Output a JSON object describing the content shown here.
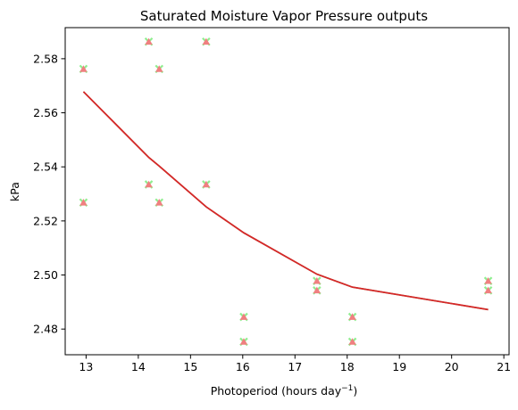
{
  "chart_data": {
    "type": "scatter",
    "title": "Saturated Moisture Vapor Pressure outputs",
    "xlabel_text": "Photoperiod (hours day",
    "xlabel_superscript": "−1",
    "xlabel_close": ")",
    "ylabel": "kPa",
    "xlim": [
      12.6,
      21.1
    ],
    "ylim": [
      2.4705,
      2.5915
    ],
    "xticks": [
      13,
      14,
      15,
      16,
      17,
      18,
      19,
      20,
      21
    ],
    "yticks": [
      2.48,
      2.5,
      2.52,
      2.54,
      2.56,
      2.58
    ],
    "ytick_decimals": 2,
    "grid": false,
    "legend": "none",
    "colors": {
      "marker_x": "#90ee90",
      "marker_triangle": "#f08080",
      "line": "#d62728",
      "line_underlay": "#2ca02c"
    },
    "series": [
      {
        "marker": "x",
        "points": [
          [
            12.95,
            2.5762
          ],
          [
            12.95,
            2.5268
          ],
          [
            14.2,
            2.5863
          ],
          [
            14.2,
            2.5335
          ],
          [
            14.4,
            2.5762
          ],
          [
            14.4,
            2.5268
          ],
          [
            15.3,
            2.5863
          ],
          [
            15.3,
            2.5335
          ],
          [
            16.02,
            2.4845
          ],
          [
            16.02,
            2.4753
          ],
          [
            17.42,
            2.4978
          ],
          [
            17.42,
            2.4943
          ],
          [
            18.1,
            2.4845
          ],
          [
            18.1,
            2.4753
          ],
          [
            20.7,
            2.4978
          ],
          [
            20.7,
            2.4943
          ]
        ]
      },
      {
        "marker": "triangle",
        "points": [
          [
            12.95,
            2.5762
          ],
          [
            12.95,
            2.5268
          ],
          [
            14.2,
            2.5863
          ],
          [
            14.2,
            2.5335
          ],
          [
            14.4,
            2.5762
          ],
          [
            14.4,
            2.5268
          ],
          [
            15.3,
            2.5863
          ],
          [
            15.3,
            2.5335
          ],
          [
            16.02,
            2.4845
          ],
          [
            16.02,
            2.4753
          ],
          [
            17.42,
            2.4978
          ],
          [
            17.42,
            2.4943
          ],
          [
            18.1,
            2.4845
          ],
          [
            18.1,
            2.4753
          ],
          [
            20.7,
            2.4978
          ],
          [
            20.7,
            2.4943
          ]
        ]
      },
      {
        "marker": "line",
        "points": [
          [
            12.95,
            2.5678
          ],
          [
            14.2,
            2.5435
          ],
          [
            14.4,
            2.5403
          ],
          [
            15.3,
            2.5252
          ],
          [
            16.02,
            2.5156
          ],
          [
            17.42,
            2.5003
          ],
          [
            18.1,
            2.4955
          ],
          [
            20.7,
            2.4872
          ]
        ]
      }
    ]
  }
}
